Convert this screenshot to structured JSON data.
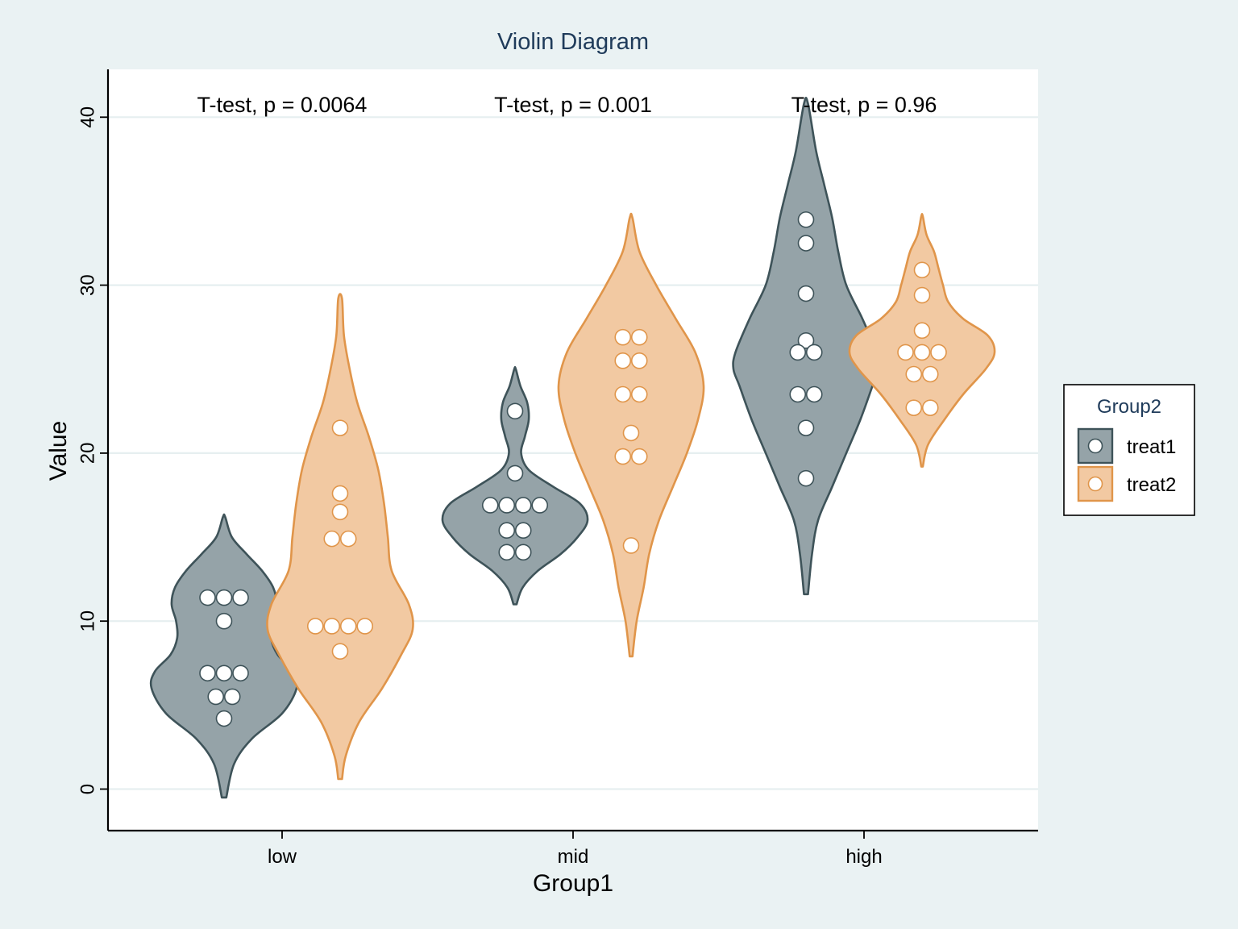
{
  "chart_data": {
    "type": "violin",
    "title": "Violin Diagram",
    "xlabel": "Group1",
    "ylabel": "Value",
    "categories": [
      "low",
      "mid",
      "high"
    ],
    "ylim": [
      -2.5,
      42.8
    ],
    "yticks": [
      0,
      10,
      20,
      30,
      40
    ],
    "grid": true,
    "legend": {
      "title": "Group2",
      "position": "right",
      "entries": [
        "treat1",
        "treat2"
      ]
    },
    "colors": {
      "treat1_fill": "#95a3a8",
      "treat1_line": "#3e5359",
      "treat2_fill": "#f2c9a2",
      "treat2_line": "#e0954a",
      "grid": "#e6eff0",
      "title": "#1f3b5a"
    },
    "annotations": [
      {
        "category": "low",
        "text": "T-test, p = 0.0064"
      },
      {
        "category": "mid",
        "text": "T-test, p = 0.001"
      },
      {
        "category": "high",
        "text": "T-test, p = 0.96"
      }
    ],
    "series": [
      {
        "name": "treat1",
        "groups": [
          {
            "category": "low",
            "range": [
              -0.5,
              16.2
            ],
            "values": [
              11.4,
              11.4,
              11.4,
              10.0,
              6.9,
              6.9,
              6.9,
              5.5,
              5.5,
              4.2
            ],
            "density": [
              [
                -0.5,
                0.02
              ],
              [
                1.5,
                0.09
              ],
              [
                3,
                0.25
              ],
              [
                4.5,
                0.52
              ],
              [
                6,
                0.65
              ],
              [
                7,
                0.62
              ],
              [
                8,
                0.48
              ],
              [
                9,
                0.42
              ],
              [
                10,
                0.43
              ],
              [
                11,
                0.47
              ],
              [
                12,
                0.44
              ],
              [
                13,
                0.34
              ],
              [
                14,
                0.2
              ],
              [
                15,
                0.07
              ],
              [
                16.2,
                0.01
              ]
            ]
          },
          {
            "category": "mid",
            "range": [
              11.0,
              25.0
            ],
            "values": [
              22.5,
              18.8,
              16.9,
              16.9,
              16.9,
              16.9,
              15.4,
              15.4,
              14.1,
              14.1
            ],
            "density": [
              [
                11,
                0.02
              ],
              [
                12,
                0.1
              ],
              [
                13,
                0.3
              ],
              [
                14,
                0.6
              ],
              [
                15,
                0.82
              ],
              [
                16,
                0.95
              ],
              [
                17,
                0.85
              ],
              [
                18,
                0.5
              ],
              [
                19,
                0.18
              ],
              [
                20,
                0.08
              ],
              [
                21,
                0.13
              ],
              [
                22,
                0.18
              ],
              [
                23,
                0.16
              ],
              [
                24,
                0.07
              ],
              [
                25,
                0.01
              ]
            ]
          },
          {
            "category": "high",
            "range": [
              11.6,
              40.8
            ],
            "values": [
              33.9,
              32.5,
              29.5,
              26.7,
              26.0,
              26.0,
              23.5,
              23.5,
              21.5,
              18.5
            ],
            "density": [
              [
                11.6,
                0.01
              ],
              [
                14,
                0.03
              ],
              [
                16,
                0.06
              ],
              [
                18,
                0.13
              ],
              [
                20,
                0.2
              ],
              [
                22,
                0.27
              ],
              [
                24,
                0.33
              ],
              [
                25,
                0.36
              ],
              [
                26,
                0.35
              ],
              [
                28,
                0.28
              ],
              [
                30,
                0.2
              ],
              [
                32,
                0.16
              ],
              [
                34,
                0.13
              ],
              [
                36,
                0.09
              ],
              [
                38,
                0.05
              ],
              [
                40.8,
                0.01
              ]
            ]
          }
        ]
      },
      {
        "name": "treat2",
        "groups": [
          {
            "category": "low",
            "range": [
              0.6,
              29.2
            ],
            "values": [
              21.5,
              17.6,
              16.5,
              14.9,
              14.9,
              9.7,
              9.7,
              9.7,
              9.7,
              8.2
            ],
            "density": [
              [
                0.6,
                0.01
              ],
              [
                2,
                0.03
              ],
              [
                4,
                0.1
              ],
              [
                6,
                0.22
              ],
              [
                8,
                0.32
              ],
              [
                9.5,
                0.38
              ],
              [
                11,
                0.36
              ],
              [
                13,
                0.27
              ],
              [
                15,
                0.25
              ],
              [
                17,
                0.23
              ],
              [
                19,
                0.2
              ],
              [
                21,
                0.15
              ],
              [
                23,
                0.09
              ],
              [
                25,
                0.05
              ],
              [
                27,
                0.02
              ],
              [
                29.2,
                0.01
              ]
            ]
          },
          {
            "category": "mid",
            "range": [
              7.9,
              34.0
            ],
            "values": [
              26.9,
              26.9,
              25.5,
              25.5,
              23.5,
              23.5,
              21.2,
              19.8,
              19.8,
              14.5
            ],
            "density": [
              [
                7.9,
                0.01
              ],
              [
                10,
                0.04
              ],
              [
                12,
                0.09
              ],
              [
                14,
                0.13
              ],
              [
                16,
                0.2
              ],
              [
                18,
                0.3
              ],
              [
                20,
                0.4
              ],
              [
                22,
                0.48
              ],
              [
                24,
                0.52
              ],
              [
                26,
                0.46
              ],
              [
                28,
                0.32
              ],
              [
                30,
                0.18
              ],
              [
                32,
                0.06
              ],
              [
                34,
                0.01
              ]
            ]
          },
          {
            "category": "high",
            "range": [
              19.2,
              34.1
            ],
            "values": [
              30.9,
              29.4,
              27.3,
              26.0,
              26.0,
              26.0,
              24.7,
              24.7,
              22.7,
              22.7
            ],
            "density": [
              [
                19.2,
                0.01
              ],
              [
                20.5,
                0.08
              ],
              [
                22,
                0.3
              ],
              [
                23.5,
                0.55
              ],
              [
                25,
                0.85
              ],
              [
                26,
                0.97
              ],
              [
                27,
                0.88
              ],
              [
                28,
                0.55
              ],
              [
                29,
                0.35
              ],
              [
                30,
                0.28
              ],
              [
                31,
                0.22
              ],
              [
                32,
                0.16
              ],
              [
                33,
                0.06
              ],
              [
                34.1,
                0.01
              ]
            ]
          }
        ]
      }
    ]
  }
}
